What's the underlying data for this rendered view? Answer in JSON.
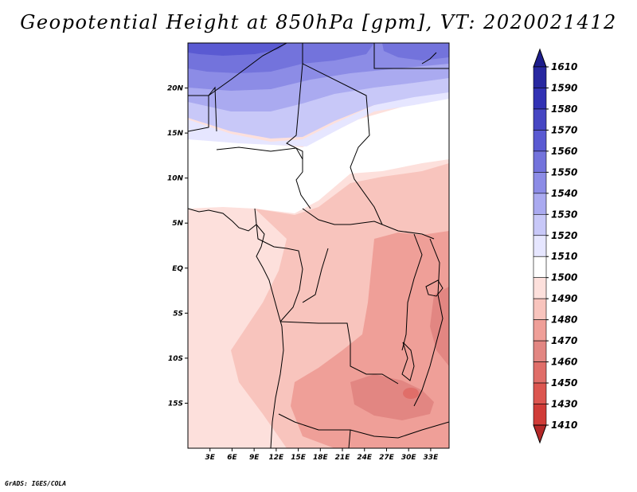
{
  "title": "Geopotential Height at 850hPa [gpm], VT: 2020021412",
  "credit": "GrADS: IGES/COLA",
  "map": {
    "variable": "Geopotential Height",
    "level": "850hPa",
    "units": "gpm",
    "valid_time": "2020021412",
    "lon_range_deg": [
      0,
      35.5
    ],
    "lat_range_deg": [
      -20,
      25
    ],
    "lat_ticks": [
      {
        "label": "20N",
        "lat": 20
      },
      {
        "label": "15N",
        "lat": 15
      },
      {
        "label": "10N",
        "lat": 10
      },
      {
        "label": "5N",
        "lat": 5
      },
      {
        "label": "EQ",
        "lat": 0
      },
      {
        "label": "5S",
        "lat": -5
      },
      {
        "label": "10S",
        "lat": -10
      },
      {
        "label": "15S",
        "lat": -15
      }
    ],
    "lon_ticks": [
      {
        "label": "3E",
        "lon": 3
      },
      {
        "label": "6E",
        "lon": 6
      },
      {
        "label": "9E",
        "lon": 9
      },
      {
        "label": "12E",
        "lon": 12
      },
      {
        "label": "15E",
        "lon": 15
      },
      {
        "label": "18E",
        "lon": 18
      },
      {
        "label": "21E",
        "lon": 21
      },
      {
        "label": "24E",
        "lon": 24
      },
      {
        "label": "27E",
        "lon": 27
      },
      {
        "label": "30E",
        "lon": 30
      },
      {
        "label": "33E",
        "lon": 33
      }
    ]
  },
  "colorbar": {
    "levels": [
      {
        "label": "1610",
        "color": "#1e1e8c"
      },
      {
        "label": "1590",
        "color": "#2828a0"
      },
      {
        "label": "1580",
        "color": "#3232b4"
      },
      {
        "label": "1570",
        "color": "#4646c3"
      },
      {
        "label": "1560",
        "color": "#5a5ad2"
      },
      {
        "label": "1550",
        "color": "#7373dc"
      },
      {
        "label": "1540",
        "color": "#8c8ce6"
      },
      {
        "label": "1530",
        "color": "#aaaaf0"
      },
      {
        "label": "1520",
        "color": "#c8c8f8"
      },
      {
        "label": "1510",
        "color": "#e6e6ff"
      },
      {
        "label": "1500",
        "color": "#ffffff"
      },
      {
        "label": "1490",
        "color": "#fde0dc"
      },
      {
        "label": "1480",
        "color": "#f8c4bd"
      },
      {
        "label": "1470",
        "color": "#ef9f98"
      },
      {
        "label": "1460",
        "color": "#e28682"
      },
      {
        "label": "1450",
        "color": "#e06e69"
      },
      {
        "label": "1430",
        "color": "#dc5650"
      },
      {
        "label": "1410",
        "color": "#d03c38"
      },
      {
        "label": "",
        "color": "#b42828"
      }
    ]
  }
}
